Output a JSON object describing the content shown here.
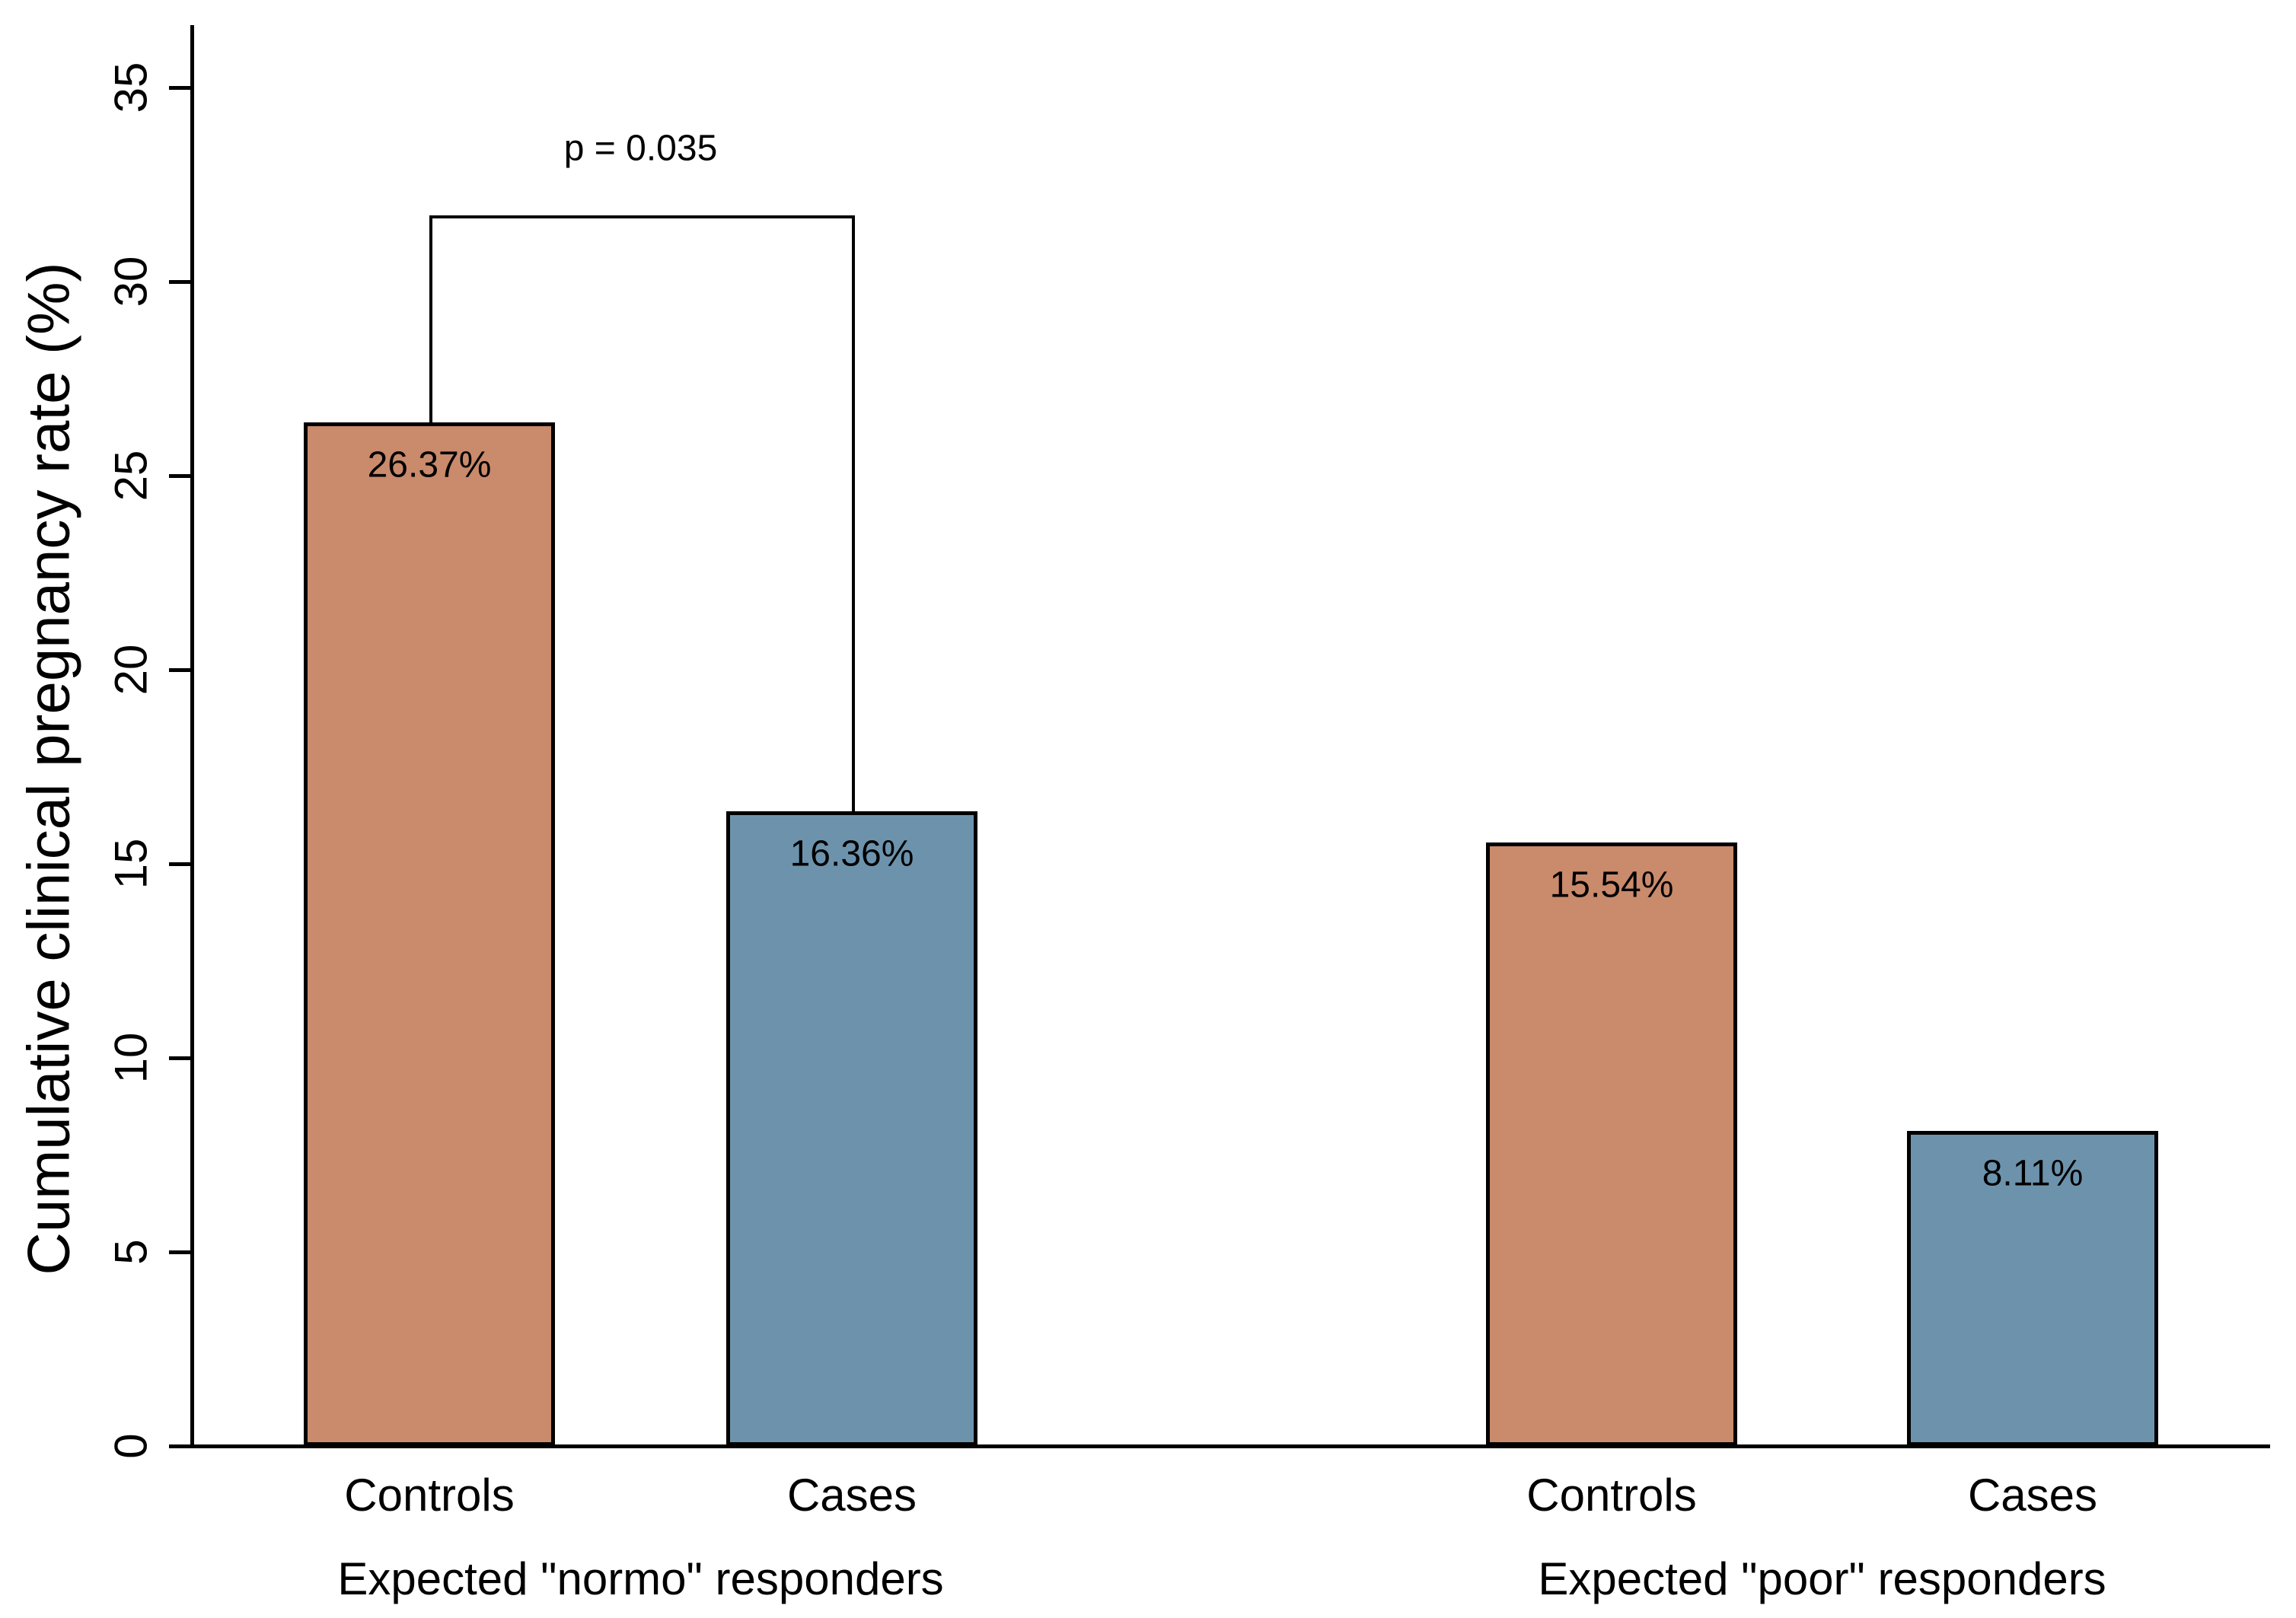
{
  "chart_data": {
    "type": "bar",
    "title": "",
    "ylabel": "Cumulative clinical pregnancy rate (%)",
    "xlabel": "",
    "ylim": [
      0,
      35
    ],
    "yticks": [
      "0",
      "5",
      "10",
      "15",
      "20",
      "25",
      "30",
      "35"
    ],
    "grid": false,
    "legend": "none",
    "groups": [
      {
        "label": "Expected \"normo\" responders",
        "bars": [
          {
            "category": "Controls",
            "value": 26.37,
            "value_label": "26.37%",
            "color": "#CA8A6C"
          },
          {
            "category": "Cases",
            "value": 16.36,
            "value_label": "16.36%",
            "color": "#6D93AC"
          }
        ]
      },
      {
        "label": "Expected \"poor\" responders",
        "bars": [
          {
            "category": "Controls",
            "value": 15.54,
            "value_label": "15.54%",
            "color": "#CA8A6C"
          },
          {
            "category": "Cases",
            "value": 8.11,
            "value_label": "8.11%",
            "color": "#6D93AC"
          }
        ]
      }
    ],
    "annotation": {
      "text": "p = 0.035",
      "connects": [
        "Controls",
        "Cases"
      ],
      "group": "Expected \"normo\" responders"
    },
    "colors": {
      "controls_fill": "#CA8A6C",
      "cases_fill": "#6D93AC",
      "axis": "#000000",
      "text": "#000000",
      "background": "#FFFFFF"
    }
  }
}
